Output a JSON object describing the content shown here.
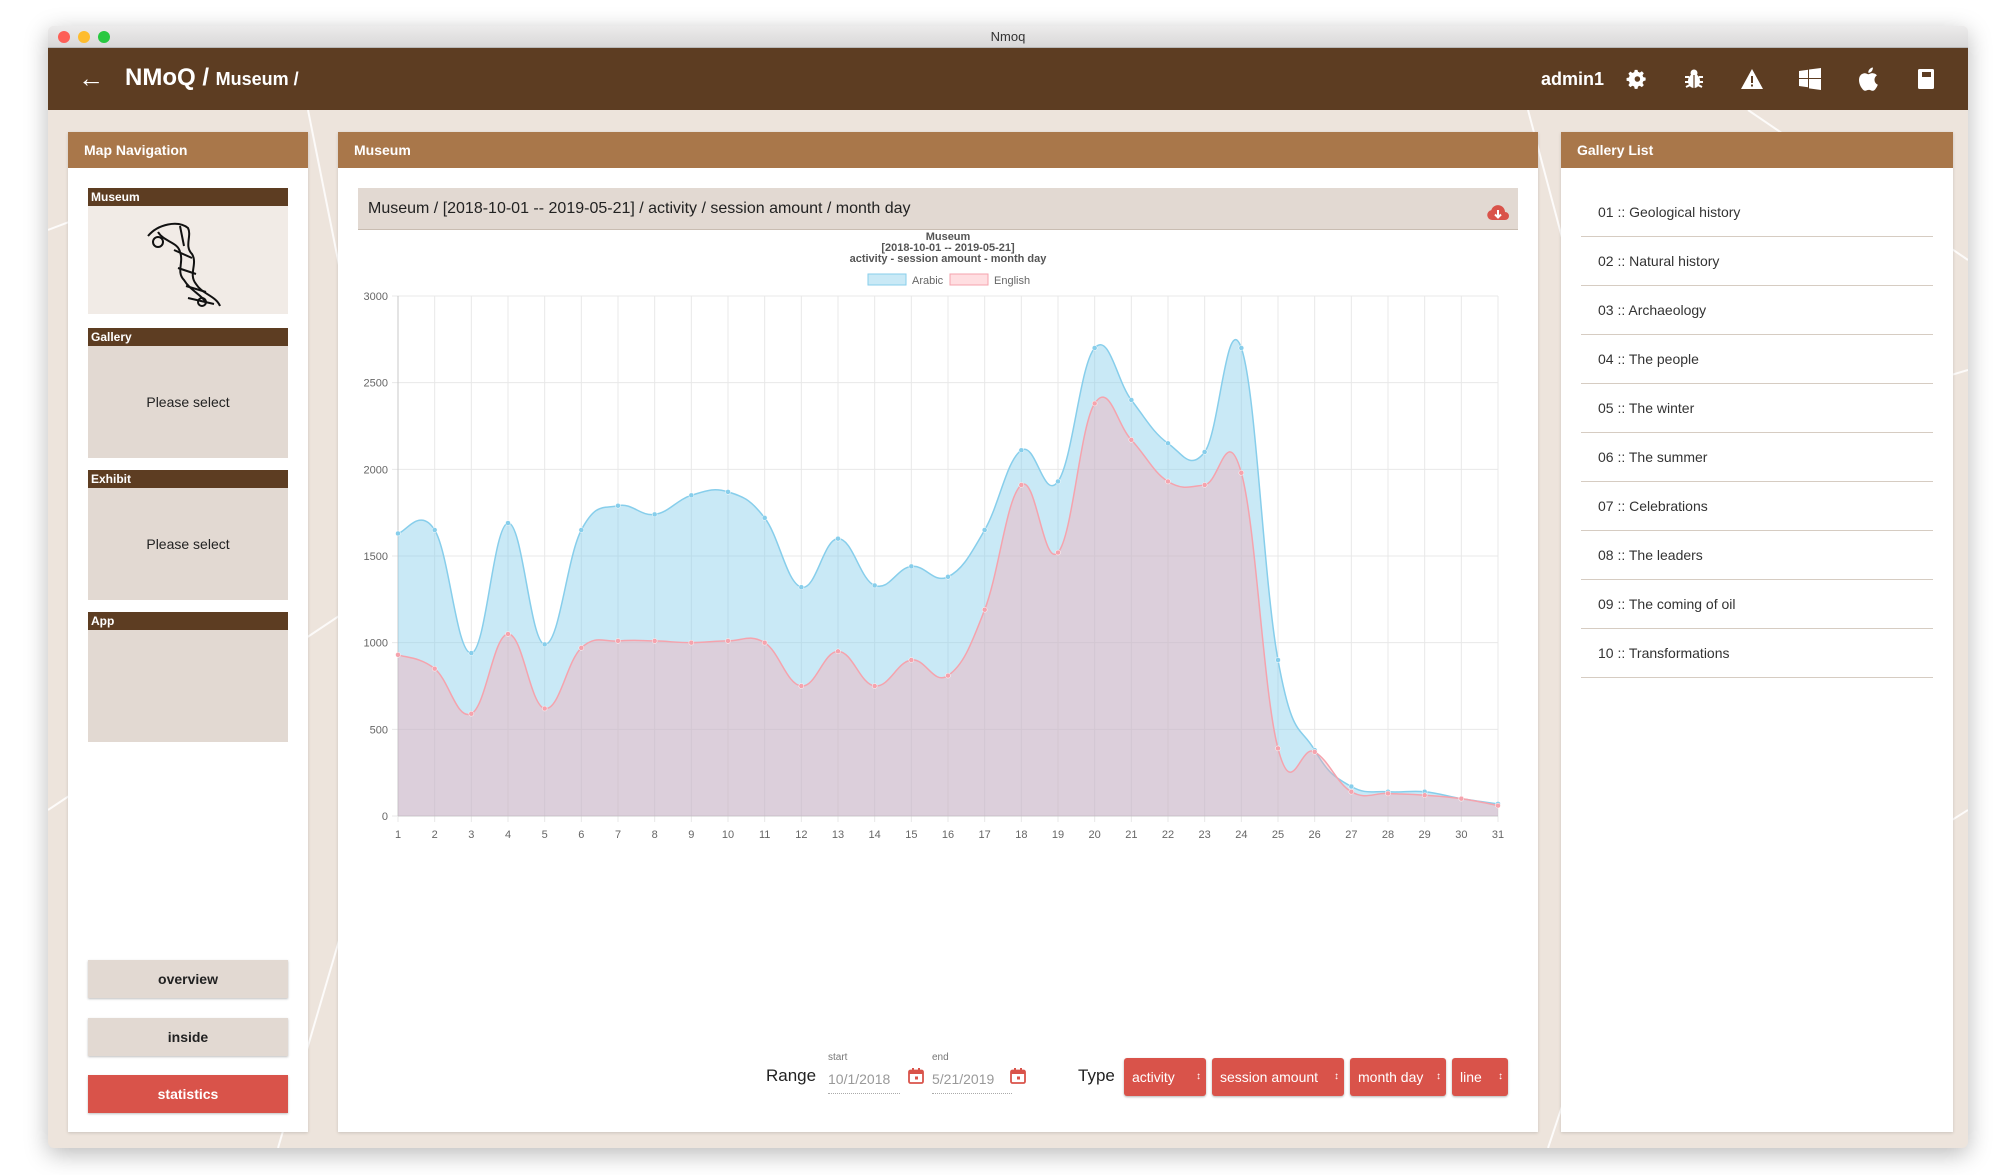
{
  "window": {
    "title": "Nmoq"
  },
  "appbar": {
    "brand": "NMoQ /",
    "crumb": "Museum /",
    "user": "admin1"
  },
  "left": {
    "title": "Map Navigation",
    "blocks": [
      {
        "label": "Museum",
        "text": ""
      },
      {
        "label": "Gallery",
        "text": "Please select"
      },
      {
        "label": "Exhibit",
        "text": "Please select"
      },
      {
        "label": "App",
        "text": ""
      }
    ],
    "buttons": {
      "overview": "overview",
      "inside": "inside",
      "statistics": "statistics"
    }
  },
  "center": {
    "title": "Museum",
    "chart_header": "Museum / [2018-10-01 -- 2019-05-21] / activity / session amount / month day",
    "controls": {
      "range_label": "Range",
      "start_caption": "start",
      "start_value": "10/1/2018",
      "end_caption": "end",
      "end_value": "5/21/2019",
      "type_label": "Type",
      "type_select": "activity",
      "metric_select": "session amount",
      "group_select": "month day",
      "chart_select": "line"
    }
  },
  "right": {
    "title": "Gallery List",
    "items": [
      "01 :: Geological history",
      "02 :: Natural history",
      "03 :: Archaeology",
      "04 :: The people",
      "05 :: The winter",
      "06 :: The summer",
      "07 :: Celebrations",
      "08 :: The leaders",
      "09 :: The coming of oil",
      "10 :: Transformations"
    ]
  },
  "colors": {
    "arabic_fill": "rgba(135,206,235,0.45)",
    "arabic_line": "#87ceeb",
    "english_fill": "rgba(255,160,170,0.35)",
    "english_line": "#f5a3ad",
    "accent": "#d9534a",
    "brown": "#5d3d22"
  },
  "chart_data": {
    "type": "area",
    "title": [
      "Museum",
      "[2018-10-01 -- 2019-05-21]",
      "activity - session amount - month day"
    ],
    "legend": "top",
    "x": [
      1,
      2,
      3,
      4,
      5,
      6,
      7,
      8,
      9,
      10,
      11,
      12,
      13,
      14,
      15,
      16,
      17,
      18,
      19,
      20,
      21,
      22,
      23,
      24,
      25,
      26,
      27,
      28,
      29,
      30,
      31
    ],
    "ylim": [
      0,
      3000
    ],
    "yticks": [
      0,
      500,
      1000,
      1500,
      2000,
      2500,
      3000
    ],
    "grid": true,
    "series": [
      {
        "name": "Arabic",
        "values": [
          1630,
          1650,
          940,
          1690,
          990,
          1650,
          1790,
          1740,
          1850,
          1870,
          1720,
          1320,
          1600,
          1330,
          1440,
          1380,
          1650,
          2110,
          1930,
          2700,
          2400,
          2150,
          2100,
          2700,
          900,
          380,
          170,
          140,
          140,
          100,
          70
        ]
      },
      {
        "name": "English",
        "values": [
          930,
          850,
          590,
          1050,
          620,
          970,
          1010,
          1010,
          1000,
          1010,
          1000,
          750,
          950,
          750,
          900,
          810,
          1190,
          1910,
          1520,
          2380,
          2170,
          1930,
          1910,
          1980,
          390,
          370,
          140,
          130,
          120,
          100,
          60
        ]
      }
    ]
  }
}
